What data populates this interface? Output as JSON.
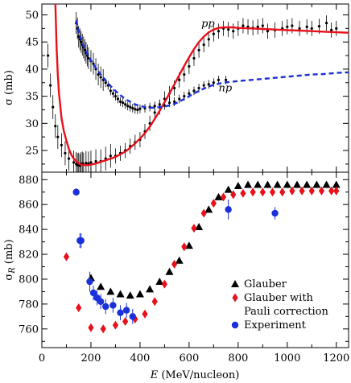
{
  "chart_data": [
    {
      "type": "scatter",
      "ylabel": "σ (mb)",
      "xlim": [
        0,
        1250
      ],
      "ylim": [
        21,
        52
      ],
      "y_ticks": [
        25,
        30,
        35,
        40,
        45,
        50
      ],
      "annotations": [
        {
          "text": "pp",
          "x": 650,
          "y": 48.4
        },
        {
          "text": "np",
          "x": 720,
          "y": 36.5
        }
      ],
      "series": [
        {
          "marker": "dot",
          "color": "#000000",
          "x": [
            25,
            35,
            45,
            55,
            65,
            80,
            95,
            110,
            130,
            140,
            145,
            150,
            155,
            160,
            165,
            170,
            180,
            190,
            200,
            220,
            240,
            260,
            280,
            300,
            320,
            340,
            360,
            380,
            400,
            420,
            440,
            460,
            480,
            500,
            520,
            540,
            560,
            580,
            600,
            620,
            640,
            660,
            680,
            700,
            720,
            740,
            760,
            780,
            800,
            820,
            840,
            860,
            880,
            900,
            920,
            950,
            980,
            1000,
            1020,
            1050,
            1080,
            1100,
            1130,
            1160,
            1180,
            1200
          ],
          "y": [
            42.5,
            37,
            33,
            29.5,
            27.5,
            26,
            24.5,
            23.5,
            22.8,
            22.5,
            22.3,
            22.4,
            22.2,
            22.5,
            22.6,
            22.4,
            22.7,
            22.6,
            22.8,
            23,
            23,
            23.5,
            24,
            24,
            24.5,
            25,
            25.8,
            26.5,
            27,
            28.5,
            30,
            32,
            33,
            34.5,
            35.5,
            36.5,
            38,
            39,
            40.5,
            42,
            43.5,
            44.5,
            45.5,
            46.5,
            47,
            47.5,
            47.3,
            47,
            47.5,
            48,
            47.8,
            47.6,
            47.8,
            48,
            47,
            47.2,
            47.5,
            47.8,
            48,
            47.5,
            47.8,
            47.5,
            47.9,
            48.5,
            47.2,
            47.5
          ]
        },
        {
          "marker": "dot",
          "color": "#000000",
          "x": [
            140,
            145,
            150,
            155,
            160,
            165,
            170,
            175,
            180,
            185,
            190,
            200,
            210,
            220,
            230,
            240,
            250,
            260,
            270,
            280,
            290,
            300,
            310,
            320,
            330,
            340,
            350,
            360,
            370,
            380,
            390,
            400,
            420,
            440,
            460,
            480,
            500,
            520,
            540,
            560,
            580,
            600,
            620,
            640,
            660,
            680,
            700,
            720,
            750
          ],
          "y": [
            48.5,
            47.5,
            46,
            45.5,
            45,
            44.5,
            44,
            43.5,
            43,
            42.5,
            42,
            41.5,
            41,
            40,
            39,
            38.5,
            38,
            37.5,
            37,
            36,
            35.5,
            35,
            34.5,
            34,
            33.8,
            33.5,
            33.2,
            33,
            32.8,
            32.6,
            32.5,
            32.7,
            32.8,
            33,
            33.2,
            33.5,
            33.3,
            33.8,
            34,
            34.5,
            35,
            35.5,
            36,
            36.5,
            37,
            37.2,
            37.5,
            38,
            38
          ]
        }
      ],
      "curves": [
        {
          "name": "pp",
          "style": "solid",
          "color": "#e8101a",
          "x": [
            55,
            60,
            65,
            70,
            80,
            90,
            100,
            110,
            120,
            130,
            140,
            150,
            160,
            170,
            180,
            190,
            200,
            220,
            240,
            260,
            280,
            300,
            320,
            340,
            360,
            380,
            400,
            420,
            440,
            460,
            480,
            500,
            520,
            540,
            560,
            580,
            600,
            620,
            640,
            660,
            680,
            700,
            720,
            740,
            760,
            780,
            800,
            850,
            900,
            950,
            1000,
            1050,
            1100,
            1150,
            1200,
            1250
          ],
          "y": [
            52,
            44,
            39,
            35.5,
            31,
            28.5,
            26.8,
            25.3,
            24.2,
            23.5,
            23,
            22.6,
            22.4,
            22.3,
            22.3,
            22.3,
            22.4,
            22.6,
            22.9,
            23.2,
            23.5,
            23.8,
            24.3,
            24.8,
            25.5,
            26.3,
            27.2,
            28.2,
            29.4,
            30.8,
            32.3,
            33.9,
            35.5,
            37.2,
            38.9,
            40.6,
            42.2,
            43.7,
            45,
            46,
            46.8,
            47.3,
            47.6,
            47.7,
            47.7,
            47.7,
            47.6,
            47.5,
            47.4,
            47.3,
            47.2,
            47.1,
            47,
            46.9,
            46.8,
            46.7
          ]
        },
        {
          "name": "np",
          "style": "dashed",
          "color": "#1a30d8",
          "x": [
            140,
            150,
            160,
            170,
            180,
            190,
            200,
            220,
            240,
            260,
            280,
            300,
            320,
            340,
            360,
            380,
            400,
            420,
            440,
            460,
            480,
            500,
            520,
            540,
            560,
            580,
            600,
            620,
            640,
            660,
            680,
            700,
            720,
            740,
            760,
            780,
            800,
            850,
            900,
            950,
            1000,
            1050,
            1100,
            1150,
            1200,
            1250
          ],
          "y": [
            49,
            47,
            45.5,
            44.3,
            43.3,
            42.4,
            41.6,
            40.2,
            39,
            37.9,
            36.9,
            36,
            35.2,
            34.5,
            34,
            33.5,
            33.2,
            33,
            32.9,
            32.9,
            33,
            33.1,
            33.3,
            33.6,
            34,
            34.5,
            35,
            35.5,
            36,
            36.4,
            36.8,
            37.1,
            37.3,
            37.5,
            37.6,
            37.7,
            37.8,
            38,
            38.2,
            38.4,
            38.6,
            38.8,
            39,
            39.1,
            39.3,
            39.4
          ]
        }
      ]
    },
    {
      "type": "scatter",
      "xlabel": "E (MeV/nucleon)",
      "ylabel": "σR (mb)",
      "xlim": [
        0,
        1250
      ],
      "ylim": [
        745,
        886
      ],
      "x_ticks": [
        0,
        200,
        400,
        600,
        800,
        1000,
        1200
      ],
      "y_ticks": [
        760,
        780,
        800,
        820,
        840,
        860,
        880
      ],
      "legend_position": "bottom-right",
      "series": [
        {
          "name": "Glauber",
          "marker": "triangle",
          "color": "#000000",
          "x": [
            200,
            240,
            280,
            320,
            360,
            400,
            440,
            480,
            520,
            560,
            600,
            640,
            680,
            720,
            760,
            800,
            840,
            880,
            920,
            960,
            1000,
            1040,
            1080,
            1120,
            1160,
            1200
          ],
          "y": [
            801,
            794,
            790,
            788,
            787,
            788,
            792,
            798,
            806,
            815,
            827,
            842,
            856,
            866,
            872,
            875,
            876,
            876,
            876,
            876,
            876,
            876,
            876,
            876,
            876,
            876
          ]
        },
        {
          "name": "Glauber with Pauli correction",
          "marker": "diamond",
          "color": "#e8101a",
          "x": [
            100,
            150,
            200,
            250,
            300,
            340,
            380,
            420,
            460,
            500,
            540,
            580,
            620,
            660,
            700,
            740,
            780,
            820,
            860,
            900,
            940,
            980,
            1020,
            1060,
            1100,
            1140,
            1180,
            1200
          ],
          "y": [
            818,
            777,
            761,
            760,
            763,
            766,
            768,
            772,
            782,
            796,
            812,
            826,
            841,
            853,
            861,
            866,
            868,
            869,
            870,
            870,
            870,
            870,
            871,
            871,
            871,
            871,
            871,
            871
          ]
        },
        {
          "name": "Experiment",
          "marker": "circle",
          "color": "#1a30d8",
          "x": [
            140,
            155,
            160,
            195,
            210,
            225,
            240,
            260,
            290,
            320,
            345,
            370,
            760,
            950
          ],
          "y": [
            870,
            831,
            831,
            798,
            789,
            785,
            782,
            778,
            779,
            773,
            775,
            770,
            856,
            853
          ],
          "yerr": [
            3,
            6,
            6,
            8,
            6,
            6,
            6,
            6,
            6,
            6,
            6,
            6,
            8,
            5
          ]
        }
      ]
    }
  ]
}
